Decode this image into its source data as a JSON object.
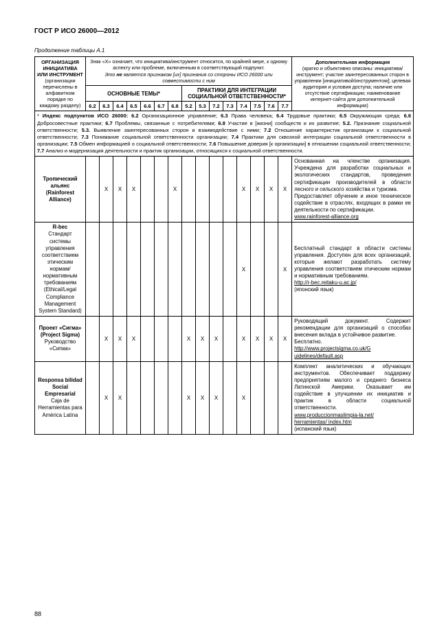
{
  "header": "ГОСТ Р ИСО 26000—2012",
  "table_caption": "Продолжение таблицы А.1",
  "columns": {
    "org_head_html": "<b>ОРГАНИЗАЦИЯ<br>ИНИЦИАТИВА<br>ИЛИ ИНСТРУМЕНТ</b><br>(организации перечислены в алфавитном порядке по каждому разделу)",
    "x_note_html": "Знак «X» означает, что инициатива/инструмент относится, по крайней мере, к одному аспекту или проблеме, включенным в соответствующий подпункт.<br><i>Это <b>не</b> является признаком [их] признания со стороны ИСО 26000 или совместимости с ним</i>",
    "main_topics": "ОСНОВНЫЕ ТЕМЫ*",
    "integration_practices": "ПРАКТИКИ ДЛЯ ИНТЕГРАЦИИ СОЦИАЛЬНОЙ ОТВЕТСТВЕННОСТИ*",
    "info_head_html": "<b>Дополнительная информация</b><br>(кратко и объективно описаны: инициатива/инструмент; участие заинтересованных сторон в управлении [инициативой/инструментом]; целевая аудитория и условия доступа; наличие или отсутствие сертификации; наименование интернет-сайта для дополнительной информации)",
    "indices": [
      "6.2",
      "6.3",
      "6.4",
      "6.5",
      "6.6",
      "6.7",
      "6.8",
      "5.2",
      "5.3",
      "7.2",
      "7.3",
      "7.4",
      "7.5",
      "7.6",
      "7.7"
    ]
  },
  "index_note_html": "* <b>Индекс подпунктов ИСО 26000: 6.2</b> Организационное управление; <b>6.3</b> Права человека; <b>6.4</b> Трудовые практики; <b>6.5</b> Окружающая среда; <b>6.6</b> Добросовестные практики; <b>6.7</b> Проблемы, связанные с потребителями; <b>6.8</b> Участие в [жизни] сообществ и их развитие; <b>5.2.</b> Признание социальной ответственности; <b>5.3.</b> Выявление заинтересованных сторон и взаимодействие с ними; <b>7.2</b> Отношение характеристик организации к социальной ответственности; <b>7.3</b> Понимание социальной ответственности организации; <b>7.4</b> Практики для сквозной интеграции социальной ответственности в организации; <b>7.5</b> Обмен информацией о социальной ответственности; <b>7.6</b> Повышение доверия [к организации] в отношении социальной ответственности; <b>7.7</b> Анализ и модернизация деятельности и практик организации, относящихся к социальной ответственности.",
  "rows": [
    {
      "name_html": "<b>Тропический альянс (Rainforest Alliance)</b>",
      "x": [
        "",
        "X",
        "X",
        "X",
        "",
        "",
        "X",
        "",
        "",
        "",
        "",
        "X",
        "X",
        "X",
        "X"
      ],
      "desc_html": "Основанная на членстве организация. Учреждена для разработки социальных и экологических стандартов, проведения сертификации производителей в области лесного и сельского хозяйства и туризма.<br>Предоставляет обучение и иное техническое содействие в отраслях, входящих в рамки ее деятельности по сертификации.<br><u>www.rainforest-alliance.org</u>"
    },
    {
      "name_html": "<b>R-bec</b><br>Стандарт системы управления соответствием этическим нормам/ нормативным требованиям (Ethical/Legal Compliance Management System Standard)",
      "x": [
        "",
        "",
        "",
        "",
        "",
        "",
        "",
        "",
        "",
        "",
        "",
        "X",
        "",
        "",
        "X"
      ],
      "desc_html": "Бесплатный стандарт в области системы управления. Доступен для всех организаций, которые желают разработать систему управления соответствием этическим нормам и нормативным требованиям.<br><u>http://r-bec.reitaku-u.ac.jp/</u><br>(японский язык)"
    },
    {
      "name_html": "<b>Проект «Сигма» (Project Sigma)</b><br>Руководство «Сигма»",
      "x": [
        "",
        "X",
        "X",
        "X",
        "",
        "",
        "",
        "X",
        "X",
        "X",
        "",
        "X",
        "X",
        "X",
        "X"
      ],
      "desc_html": "Руководящий документ. Содержит рекомендации для организаций о способах внесения вклада в устойчивое развитие.<br>Бесплатно.<br><u>http://www.projectsigma.co.uk/G<br>uidelines/default.asp</u>"
    },
    {
      "name_html": "<b>Responsa bilidad Social Empresarial</b><br>Caja de Herramientas para América Latina",
      "x": [
        "",
        "X",
        "X",
        "",
        "",
        "",
        "",
        "X",
        "X",
        "X",
        "",
        "X",
        "",
        "",
        ""
      ],
      "desc_html": "Комплект аналитических и обучающих инструментов. Обеспечивает поддержку предприятиям малого и среднего бизнеса Латинской Америки. Оказывает им содействие в улучшении их инициатив и практик в области социальной ответственности.<br><u>www.produccionmaslimpia-la.net/</u><br><u>herramientas/ index.htm</u><br>(испанский язык)"
    }
  ],
  "page_number": "88"
}
